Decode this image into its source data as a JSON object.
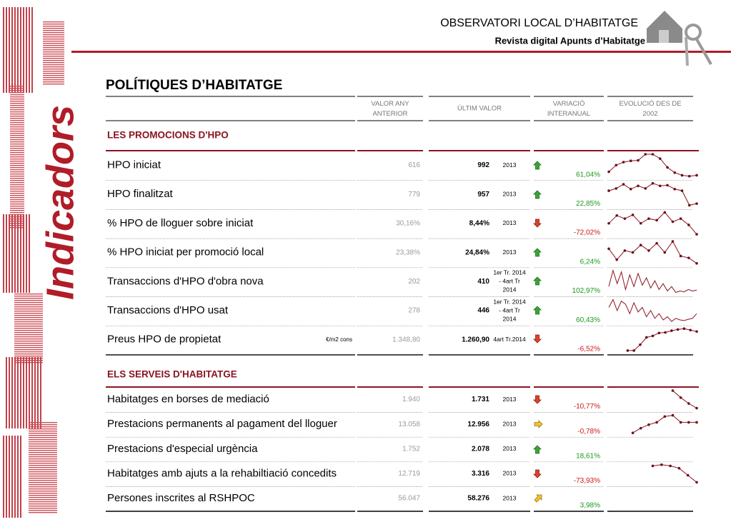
{
  "header": {
    "title": "OBSERVATORI LOCAL D’HABITATGE",
    "subtitle": "Revista digital Apunts d’Habitatge"
  },
  "side_title": "Indicadors",
  "section_title": "POLÍTIQUES D’HABITATGE",
  "columns": [
    "VALOR ANY ANTERIOR",
    "ÚLTIM VALOR",
    "VARIACIÓ INTERANUAL",
    "EVOLUCIÓ DES DE 2002"
  ],
  "groups": [
    {
      "title": "LES PROMOCIONS D'HPO",
      "rows": [
        {
          "label": "HPO iniciat",
          "previous": "616",
          "latest": "992",
          "period": [
            "2013"
          ],
          "change": "61,04%",
          "trend": [
            40,
            55,
            62,
            65,
            66,
            80,
            80,
            70,
            50,
            38,
            32,
            30,
            32
          ]
        },
        {
          "label": "HPO finalitzat",
          "previous": "779",
          "latest": "957",
          "period": [
            "2013"
          ],
          "change": "22,85%",
          "trend": [
            55,
            62,
            75,
            60,
            70,
            62,
            78,
            70,
            72,
            60,
            55,
            10,
            15
          ]
        },
        {
          "label": "% HPO de lloguer sobre iniciat",
          "previous": "30,16%",
          "latest": "8,44%",
          "period": [
            "2013"
          ],
          "change": "-72,02%",
          "trend": [
            45,
            70,
            60,
            72,
            45,
            60,
            55,
            80,
            50,
            60,
            40,
            10
          ]
        },
        {
          "label": "% HPO iniciat per promoció local",
          "previous": "23,38%",
          "latest": "24,84%",
          "period": [
            "2013"
          ],
          "change": "6,24%",
          "trend": [
            60,
            30,
            55,
            50,
            70,
            55,
            75,
            50,
            80,
            40,
            35,
            20
          ]
        },
        {
          "label": "Transaccions d'HPO d'obra nova",
          "previous": "202",
          "latest": "410",
          "period": [
            "1er Tr. 2014",
            "- 4art Tr",
            "2014"
          ],
          "change": "102,97%",
          "trend": [
            30,
            85,
            40,
            80,
            20,
            70,
            30,
            75,
            35,
            60,
            25,
            50,
            20,
            40,
            15,
            30,
            10,
            15,
            12,
            20,
            15,
            18
          ]
        },
        {
          "label": "Transaccions d'HPO usat",
          "previous": "278",
          "latest": "446",
          "period": [
            "1er Tr. 2014",
            "- 4art Tr",
            "2014"
          ],
          "change": "60,43%",
          "trend": [
            60,
            85,
            50,
            80,
            70,
            40,
            75,
            45,
            60,
            30,
            50,
            25,
            40,
            20,
            30,
            15,
            25,
            20,
            18,
            22,
            25,
            40
          ]
        },
        {
          "label": "Preus HPO de propietat",
          "unit": "€/m2 cons",
          "previous": "1.348,80",
          "latest": "1.260,90",
          "period": [
            "4art Tr.2014"
          ],
          "change": "-6,52%",
          "trend": [
            null,
            null,
            null,
            10,
            10,
            30,
            55,
            60,
            70,
            72,
            78,
            82,
            85,
            80,
            75
          ]
        }
      ]
    },
    {
      "title": "ELS SERVEIS D'HABITATGE",
      "rows": [
        {
          "label": "Habitatges en borses de mediació",
          "previous": "1.940",
          "latest": "1.731",
          "period": [
            "2013"
          ],
          "change": "-10,77%",
          "trend": [
            null,
            null,
            null,
            null,
            null,
            null,
            null,
            null,
            90,
            60,
            35,
            15
          ]
        },
        {
          "label": "Prestacions permanents al pagament del lloguer",
          "previous": "13.058",
          "latest": "12.956",
          "period": [
            "2013"
          ],
          "change": "-0,78%",
          "trend": [
            null,
            null,
            null,
            10,
            30,
            45,
            55,
            80,
            85,
            55,
            55,
            55
          ]
        },
        {
          "label": "Prestacions d'especial urgència",
          "previous": "1.752",
          "latest": "2.078",
          "period": [
            "2013"
          ],
          "change": "18,61%",
          "trend": []
        },
        {
          "label": "Habitatges amb ajuts a la rehabiltiació concedits",
          "previous": "12.719",
          "latest": "3.316",
          "period": [
            "2013"
          ],
          "change": "-73,93%",
          "trend": [
            null,
            null,
            null,
            null,
            null,
            80,
            85,
            80,
            70,
            40,
            10
          ]
        },
        {
          "label": "Persones inscrites al RSHPOC",
          "previous": "56.047",
          "latest": "58.276",
          "period": [
            "2013"
          ],
          "change": "3,98%",
          "trend": []
        }
      ]
    }
  ]
}
